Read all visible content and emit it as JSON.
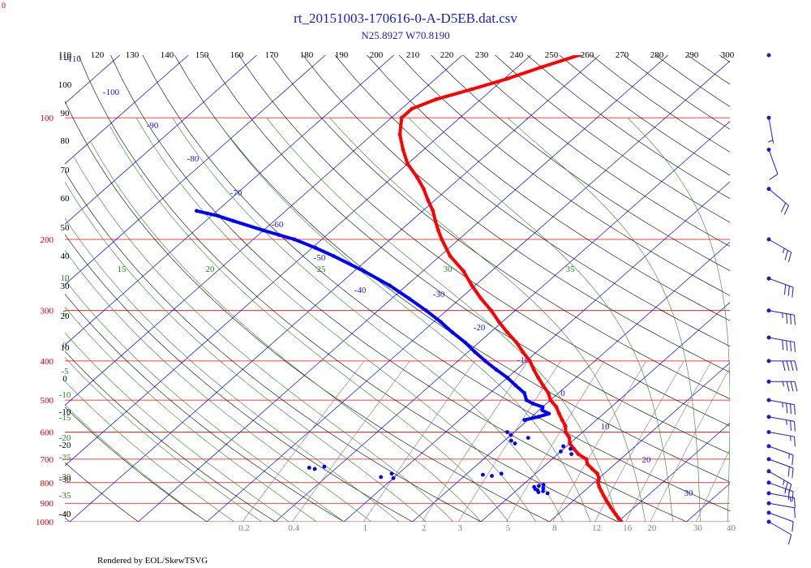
{
  "chart_data": {
    "type": "skew-t",
    "title": "rt_20151003-170616-0-A-D5EB.dat.csv",
    "subtitle": "N25.8927 W70.8190",
    "corner_label": "0",
    "footer": "Rendered by EOL/SkewTSVG",
    "top_temperature_ticks": [
      "110",
      "120",
      "130",
      "140",
      "150",
      "160",
      "170",
      "180",
      "190",
      "200",
      "210",
      "220",
      "230",
      "240",
      "250",
      "260",
      "270",
      "280",
      "290",
      "300"
    ],
    "pressure_levels": [
      100,
      200,
      300,
      400,
      500,
      600,
      700,
      800,
      900,
      1000
    ],
    "pressure_tick_labels": [
      "100",
      "200",
      "300",
      "400",
      "500",
      "600",
      "700",
      "800",
      "900",
      "1000"
    ],
    "isotherm_labels": [
      "-110",
      "-100",
      "-90",
      "-80",
      "-70",
      "-60",
      "-50",
      "-40",
      "-30",
      "-20",
      "-10",
      "0",
      "10",
      "20",
      "30"
    ],
    "theta_e_labels_top": [
      "15",
      "20",
      "25",
      "30",
      "35"
    ],
    "theta_e_labels_left": [
      "10",
      "5",
      "0",
      "-5",
      "-10",
      "-15",
      "-20",
      "-25",
      "-30",
      "-35",
      "-40"
    ],
    "theta_labels_left": [
      "110",
      "100",
      "90",
      "80",
      "70",
      "60",
      "50",
      "40",
      "30",
      "20",
      "10",
      "0",
      "-10",
      "-20",
      "-30",
      "-40"
    ],
    "mixing_ratio_labels": [
      "0.2",
      "0.4",
      "1",
      "2",
      "3",
      "5",
      "8",
      "12",
      "16",
      "20",
      "30",
      "40"
    ],
    "temperature_profile": [
      [
        1000,
        20.5
      ],
      [
        980,
        19.5
      ],
      [
        960,
        18.5
      ],
      [
        940,
        17.5
      ],
      [
        920,
        16.5
      ],
      [
        900,
        15.5
      ],
      [
        880,
        14.5
      ],
      [
        860,
        13.5
      ],
      [
        840,
        12.5
      ],
      [
        820,
        11.5
      ],
      [
        800,
        10.6
      ],
      [
        780,
        10.0
      ],
      [
        760,
        9.0
      ],
      [
        740,
        7.5
      ],
      [
        720,
        6.0
      ],
      [
        700,
        5.0
      ],
      [
        680,
        3.0
      ],
      [
        660,
        1.5
      ],
      [
        640,
        0.0
      ],
      [
        620,
        -1.0
      ],
      [
        600,
        -2.5
      ],
      [
        580,
        -3.5
      ],
      [
        560,
        -5.0
      ],
      [
        540,
        -6.5
      ],
      [
        520,
        -8.0
      ],
      [
        500,
        -10.0
      ],
      [
        480,
        -11.5
      ],
      [
        460,
        -13.5
      ],
      [
        440,
        -15.5
      ],
      [
        420,
        -17.5
      ],
      [
        400,
        -19.5
      ],
      [
        380,
        -22.0
      ],
      [
        360,
        -24.5
      ],
      [
        340,
        -27.5
      ],
      [
        320,
        -30.5
      ],
      [
        300,
        -33.5
      ],
      [
        280,
        -37.0
      ],
      [
        260,
        -40.5
      ],
      [
        240,
        -44.0
      ],
      [
        220,
        -48.5
      ],
      [
        200,
        -52.5
      ],
      [
        190,
        -54.5
      ],
      [
        180,
        -56.5
      ],
      [
        170,
        -58.5
      ],
      [
        160,
        -61.0
      ],
      [
        150,
        -63.5
      ],
      [
        140,
        -66.5
      ],
      [
        130,
        -70.0
      ],
      [
        120,
        -73.0
      ],
      [
        110,
        -76.0
      ],
      [
        100,
        -78.5
      ],
      [
        95,
        -78.5
      ],
      [
        90,
        -76.5
      ],
      [
        85,
        -73.0
      ],
      [
        80,
        -69.5
      ],
      [
        75,
        -66.5
      ],
      [
        70,
        -63.0
      ],
      [
        65,
        -59.5
      ]
    ],
    "dewpoint_profile": [
      [
        850,
        5.0
      ],
      [
        845,
        3.5
      ],
      [
        840,
        4.0
      ],
      [
        835,
        3.0
      ],
      [
        830,
        2.5
      ],
      [
        825,
        3.5
      ],
      [
        820,
        2.0
      ],
      [
        815,
        2.5
      ],
      [
        810,
        3.0
      ],
      [
        780,
        -20.0
      ],
      [
        775,
        -22.0
      ],
      [
        760,
        -21.0
      ],
      [
        770,
        -6.0
      ],
      [
        765,
        -7.5
      ],
      [
        760,
        -5.0
      ],
      [
        740,
        -33.0
      ],
      [
        735,
        -34.0
      ],
      [
        730,
        -32.0
      ],
      [
        680,
        2.0
      ],
      [
        670,
        0.0
      ],
      [
        660,
        1.0
      ],
      [
        650,
        -0.5
      ],
      [
        640,
        -8.0
      ],
      [
        630,
        -9.0
      ],
      [
        620,
        -7.0
      ],
      [
        610,
        -10.0
      ],
      [
        600,
        -11.0
      ],
      [
        560,
        -10.5
      ],
      [
        550,
        -9.0
      ],
      [
        540,
        -8.0
      ],
      [
        530,
        -9.5
      ],
      [
        520,
        -10.0
      ],
      [
        510,
        -12.0
      ],
      [
        500,
        -13.5
      ],
      [
        480,
        -15.0
      ],
      [
        460,
        -17.5
      ],
      [
        440,
        -20.0
      ],
      [
        420,
        -23.0
      ],
      [
        400,
        -26.0
      ],
      [
        380,
        -29.0
      ],
      [
        360,
        -32.0
      ],
      [
        340,
        -35.5
      ],
      [
        320,
        -39.0
      ],
      [
        300,
        -43.0
      ],
      [
        280,
        -47.5
      ],
      [
        260,
        -52.5
      ],
      [
        240,
        -58.5
      ],
      [
        220,
        -65.5
      ],
      [
        210,
        -69.5
      ],
      [
        200,
        -74.0
      ],
      [
        195,
        -77.0
      ],
      [
        190,
        -80.0
      ],
      [
        180,
        -86.0
      ],
      [
        175,
        -89.0
      ],
      [
        170,
        -93.0
      ]
    ],
    "wind_barbs": [
      [
        1000,
        120,
        10
      ],
      [
        950,
        110,
        10
      ],
      [
        900,
        100,
        10
      ],
      [
        850,
        100,
        15
      ],
      [
        800,
        110,
        25
      ],
      [
        750,
        120,
        25
      ],
      [
        700,
        110,
        20
      ],
      [
        650,
        110,
        15
      ],
      [
        600,
        100,
        15
      ],
      [
        550,
        100,
        25
      ],
      [
        500,
        100,
        35
      ],
      [
        450,
        90,
        35
      ],
      [
        400,
        90,
        40
      ],
      [
        350,
        100,
        40
      ],
      [
        300,
        100,
        35
      ],
      [
        250,
        110,
        30
      ],
      [
        200,
        120,
        25
      ],
      [
        150,
        130,
        20
      ],
      [
        120,
        160,
        10
      ],
      [
        100,
        170,
        5
      ],
      [
        70,
        200,
        0
      ]
    ],
    "colors": {
      "temperature": "#ff0000",
      "dewpoint": "#0000ff",
      "isobar": "#ff0000",
      "isotherm": "#0000ff",
      "dry_adiabat": "#000000",
      "moist_adiabat": "#228b22",
      "mixing_ratio": "#808080"
    },
    "pressure_axis": "log",
    "p_range": [
      100,
      1000
    ],
    "t_range_bottom": [
      -40,
      40
    ]
  }
}
